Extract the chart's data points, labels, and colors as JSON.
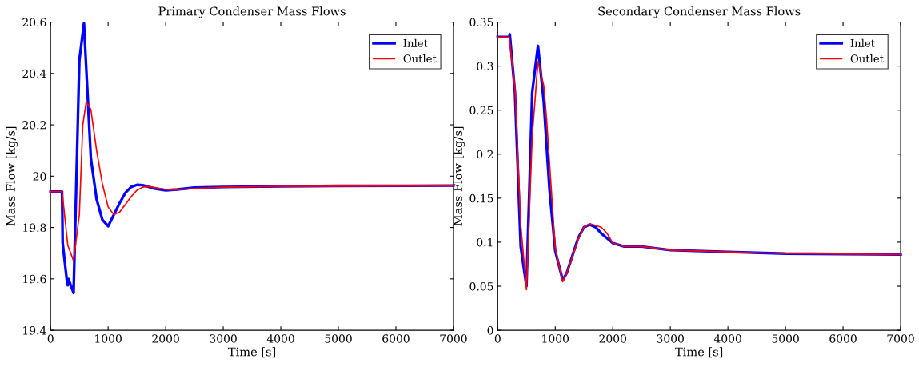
{
  "chart_data": [
    {
      "type": "line",
      "title": "Primary Condenser Mass Flows",
      "xlabel": "Time [s]",
      "ylabel": "Mass Flow [kg/s]",
      "xlim": [
        0,
        7000
      ],
      "ylim": [
        19.4,
        20.6
      ],
      "xticks": [
        0,
        1000,
        2000,
        3000,
        4000,
        5000,
        6000,
        7000
      ],
      "yticks": [
        19.4,
        19.6,
        19.8,
        {
          "value": 20,
          "label": "20"
        },
        20.2,
        20.4,
        20.6
      ],
      "grid": false,
      "legend": "top right",
      "marker": "none",
      "line_style": "solid",
      "series": [
        {
          "name": "Inlet",
          "color": "#0000ff",
          "x": [
            0,
            200,
            210,
            280,
            300,
            310,
            400,
            500,
            580,
            700,
            800,
            900,
            1000,
            1100,
            1200,
            1300,
            1400,
            1500,
            1600,
            1800,
            2000,
            2200,
            2500,
            3000,
            4000,
            5000,
            7000
          ],
          "values": [
            19.94,
            19.94,
            19.74,
            19.6,
            19.575,
            19.6,
            19.545,
            20.45,
            20.595,
            20.07,
            19.91,
            19.83,
            19.805,
            19.85,
            19.895,
            19.935,
            19.958,
            19.966,
            19.965,
            19.952,
            19.945,
            19.948,
            19.955,
            19.958,
            19.96,
            19.962,
            19.963
          ]
        },
        {
          "name": "Outlet",
          "color": "#ff0000",
          "x": [
            0,
            200,
            300,
            400,
            500,
            560,
            620,
            700,
            800,
            900,
            1000,
            1100,
            1200,
            1400,
            1500,
            1600,
            1700,
            2000,
            2100,
            2500,
            3000,
            4000,
            7000
          ],
          "values": [
            19.94,
            19.94,
            19.73,
            19.67,
            19.85,
            20.2,
            20.29,
            20.26,
            20.1,
            19.97,
            19.88,
            19.85,
            19.86,
            19.92,
            19.945,
            19.957,
            19.96,
            19.948,
            19.946,
            19.952,
            19.957,
            19.96,
            19.962
          ]
        }
      ]
    },
    {
      "type": "line",
      "title": "Secondary Condenser Mass Flows",
      "xlabel": "Time [s]",
      "ylabel": "Mass Flow [kg/s]",
      "xlim": [
        0,
        7000
      ],
      "ylim": [
        0,
        0.35
      ],
      "xticks": [
        0,
        1000,
        2000,
        3000,
        4000,
        5000,
        6000,
        7000
      ],
      "yticks": [
        0,
        0.05,
        0.1,
        0.15,
        0.2,
        0.25,
        0.3,
        0.35
      ],
      "grid": false,
      "legend": "top right",
      "marker": "none",
      "line_style": "solid",
      "series": [
        {
          "name": "Inlet",
          "color": "#0000ff",
          "x": [
            0,
            200,
            210,
            300,
            400,
            500,
            600,
            700,
            800,
            900,
            1000,
            1130,
            1200,
            1400,
            1500,
            1600,
            1700,
            1800,
            2000,
            2200,
            2500,
            3000,
            4000,
            5000,
            7000
          ],
          "values": [
            0.333,
            0.333,
            0.336,
            0.27,
            0.095,
            0.05,
            0.27,
            0.323,
            0.26,
            0.16,
            0.09,
            0.057,
            0.065,
            0.105,
            0.117,
            0.12,
            0.117,
            0.11,
            0.099,
            0.095,
            0.095,
            0.091,
            0.089,
            0.087,
            0.086
          ]
        },
        {
          "name": "Outlet",
          "color": "#ff0000",
          "x": [
            0,
            200,
            300,
            400,
            500,
            600,
            700,
            800,
            850,
            1000,
            1130,
            1200,
            1400,
            1500,
            1600,
            1800,
            1900,
            2000,
            2200,
            2500,
            3000,
            4000,
            5000,
            7000
          ],
          "values": [
            0.333,
            0.333,
            0.275,
            0.12,
            0.046,
            0.22,
            0.305,
            0.278,
            0.24,
            0.093,
            0.055,
            0.065,
            0.103,
            0.117,
            0.121,
            0.117,
            0.11,
            0.099,
            0.095,
            0.095,
            0.091,
            0.089,
            0.087,
            0.086
          ]
        }
      ]
    }
  ]
}
